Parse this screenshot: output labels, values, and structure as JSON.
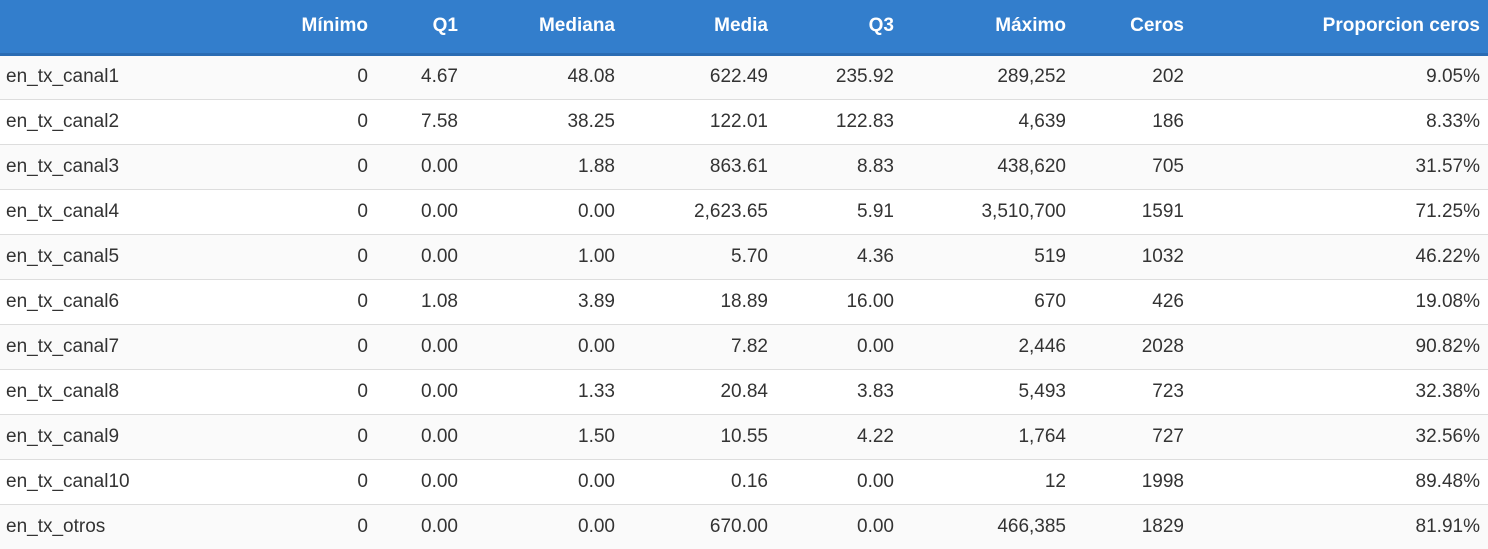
{
  "table": {
    "headers": [
      "",
      "Mínimo",
      "Q1",
      "Mediana",
      "Media",
      "Q3",
      "Máximo",
      "Ceros",
      "Proporcion ceros"
    ],
    "rows": [
      [
        "en_tx_canal1",
        "0",
        "4.67",
        "48.08",
        "622.49",
        "235.92",
        "289,252",
        "202",
        "9.05%"
      ],
      [
        "en_tx_canal2",
        "0",
        "7.58",
        "38.25",
        "122.01",
        "122.83",
        "4,639",
        "186",
        "8.33%"
      ],
      [
        "en_tx_canal3",
        "0",
        "0.00",
        "1.88",
        "863.61",
        "8.83",
        "438,620",
        "705",
        "31.57%"
      ],
      [
        "en_tx_canal4",
        "0",
        "0.00",
        "0.00",
        "2,623.65",
        "5.91",
        "3,510,700",
        "1591",
        "71.25%"
      ],
      [
        "en_tx_canal5",
        "0",
        "0.00",
        "1.00",
        "5.70",
        "4.36",
        "519",
        "1032",
        "46.22%"
      ],
      [
        "en_tx_canal6",
        "0",
        "1.08",
        "3.89",
        "18.89",
        "16.00",
        "670",
        "426",
        "19.08%"
      ],
      [
        "en_tx_canal7",
        "0",
        "0.00",
        "0.00",
        "7.82",
        "0.00",
        "2,446",
        "2028",
        "90.82%"
      ],
      [
        "en_tx_canal8",
        "0",
        "0.00",
        "1.33",
        "20.84",
        "3.83",
        "5,493",
        "723",
        "32.38%"
      ],
      [
        "en_tx_canal9",
        "0",
        "0.00",
        "1.50",
        "10.55",
        "4.22",
        "1,764",
        "727",
        "32.56%"
      ],
      [
        "en_tx_canal10",
        "0",
        "0.00",
        "0.00",
        "0.16",
        "0.00",
        "12",
        "1998",
        "89.48%"
      ],
      [
        "en_tx_otros",
        "0",
        "0.00",
        "0.00",
        "670.00",
        "0.00",
        "466,385",
        "1829",
        "81.91%"
      ]
    ]
  },
  "colors": {
    "header_background": "#337ecc",
    "header_text": "#ffffff",
    "body_text": "#333333",
    "row_border": "#dddddd"
  }
}
